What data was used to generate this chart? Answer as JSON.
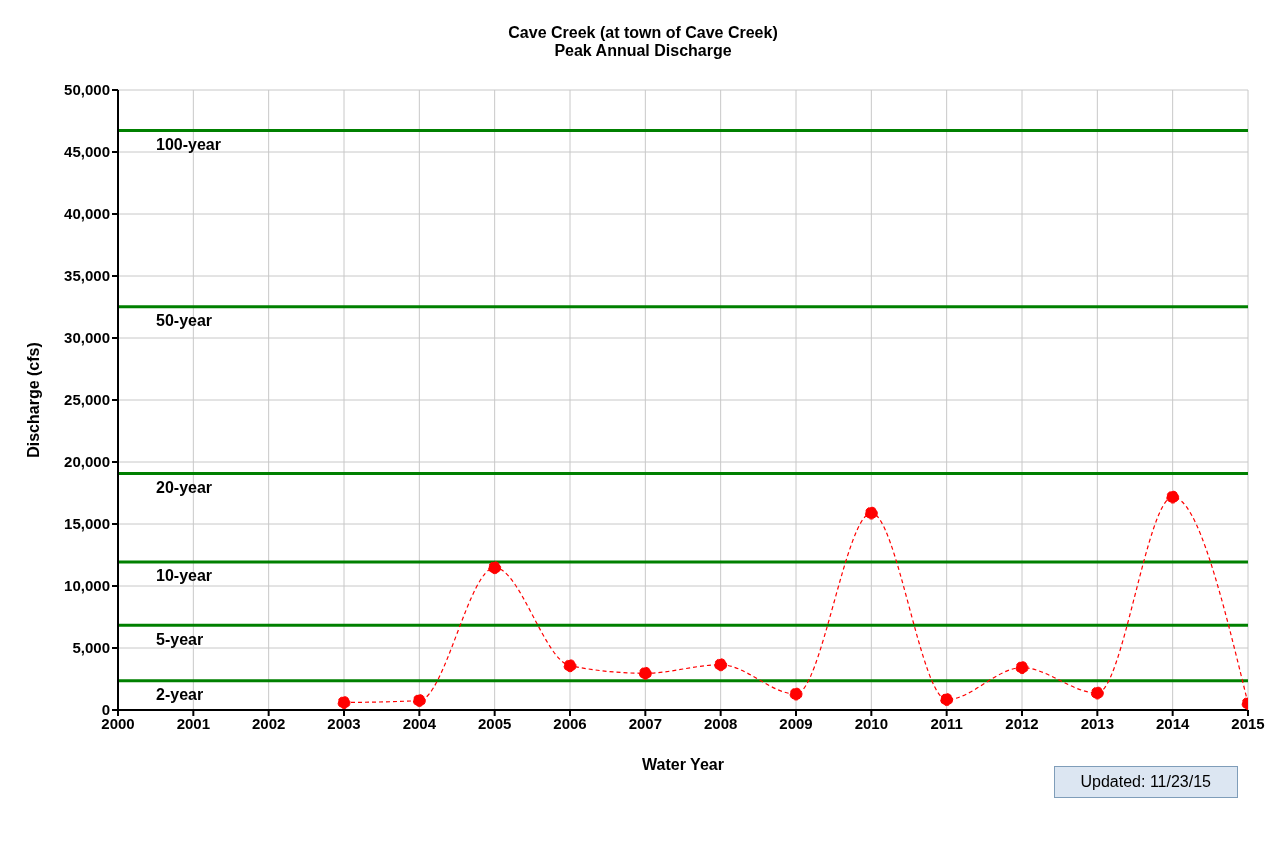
{
  "chart_data": {
    "type": "line",
    "title": "Cave Creek (at town of Cave Creek)",
    "subtitle": "Peak Annual Discharge",
    "xlabel": "Water Year",
    "ylabel": "Discharge (cfs)",
    "x": [
      2003,
      2004,
      2005,
      2006,
      2007,
      2008,
      2009,
      2010,
      2011,
      2012,
      2013,
      2014,
      2015
    ],
    "series": [
      {
        "color": "#ff0000",
        "values": [
          600,
          760,
          11480,
          3570,
          2960,
          3650,
          1290,
          15880,
          840,
          3420,
          1370,
          17170,
          530
        ]
      }
    ],
    "marker": "circle",
    "line_style": "dashed",
    "grid": true,
    "legend": false,
    "xlim": [
      2000,
      2015
    ],
    "xticks": [
      2000,
      2001,
      2002,
      2003,
      2004,
      2005,
      2006,
      2007,
      2008,
      2009,
      2010,
      2011,
      2012,
      2013,
      2014,
      2015
    ],
    "ylim": [
      0,
      50000
    ],
    "yticks": [
      {
        "value": 0,
        "label": "0"
      },
      {
        "value": 5000,
        "label": "5,000"
      },
      {
        "value": 10000,
        "label": "10,000"
      },
      {
        "value": 15000,
        "label": "15,000"
      },
      {
        "value": 20000,
        "label": "20,000"
      },
      {
        "value": 25000,
        "label": "25,000"
      },
      {
        "value": 30000,
        "label": "30,000"
      },
      {
        "value": 35000,
        "label": "35,000"
      },
      {
        "value": 40000,
        "label": "40,000"
      },
      {
        "value": 45000,
        "label": "45,000"
      },
      {
        "value": 50000,
        "label": "50,000"
      }
    ],
    "ref_lines": [
      {
        "axis": "y",
        "value": 46740,
        "label": "100-year",
        "color": "#008000"
      },
      {
        "axis": "y",
        "value": 32520,
        "label": "50-year",
        "color": "#008000"
      },
      {
        "axis": "y",
        "value": 19070,
        "label": "20-year",
        "color": "#008000"
      },
      {
        "axis": "y",
        "value": 11930,
        "label": "10-year",
        "color": "#008000"
      },
      {
        "axis": "y",
        "value": 6840,
        "label": "5-year",
        "color": "#008000"
      },
      {
        "axis": "y",
        "value": 2360,
        "label": "2-year",
        "color": "#008000"
      }
    ],
    "annotations": [
      "Updated: 11/23/15"
    ]
  }
}
